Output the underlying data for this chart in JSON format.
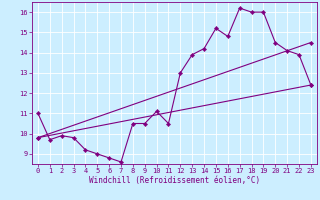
{
  "xlabel": "Windchill (Refroidissement éolien,°C)",
  "bg_color": "#cceeff",
  "grid_color": "#ffffff",
  "line_color": "#800080",
  "xlim": [
    -0.5,
    23.5
  ],
  "ylim": [
    8.5,
    16.5
  ],
  "xticks": [
    0,
    1,
    2,
    3,
    4,
    5,
    6,
    7,
    8,
    9,
    10,
    11,
    12,
    13,
    14,
    15,
    16,
    17,
    18,
    19,
    20,
    21,
    22,
    23
  ],
  "yticks": [
    9,
    10,
    11,
    12,
    13,
    14,
    15,
    16
  ],
  "series1_x": [
    0,
    1,
    2,
    3,
    4,
    5,
    6,
    7,
    8,
    9,
    10,
    11,
    12,
    13,
    14,
    15,
    16,
    17,
    18,
    19,
    20,
    21,
    22,
    23
  ],
  "series1_y": [
    11.0,
    9.7,
    9.9,
    9.8,
    9.2,
    9.0,
    8.8,
    8.6,
    10.5,
    10.5,
    11.1,
    10.5,
    13.0,
    13.9,
    14.2,
    15.2,
    14.8,
    16.2,
    16.0,
    16.0,
    14.5,
    14.1,
    13.9,
    12.4
  ],
  "series2_x": [
    0,
    23
  ],
  "series2_y": [
    9.8,
    12.4
  ],
  "series3_x": [
    0,
    23
  ],
  "series3_y": [
    9.8,
    14.5
  ],
  "tick_fontsize": 5,
  "xlabel_fontsize": 5.5,
  "lw": 0.8,
  "marker_size": 2.2
}
